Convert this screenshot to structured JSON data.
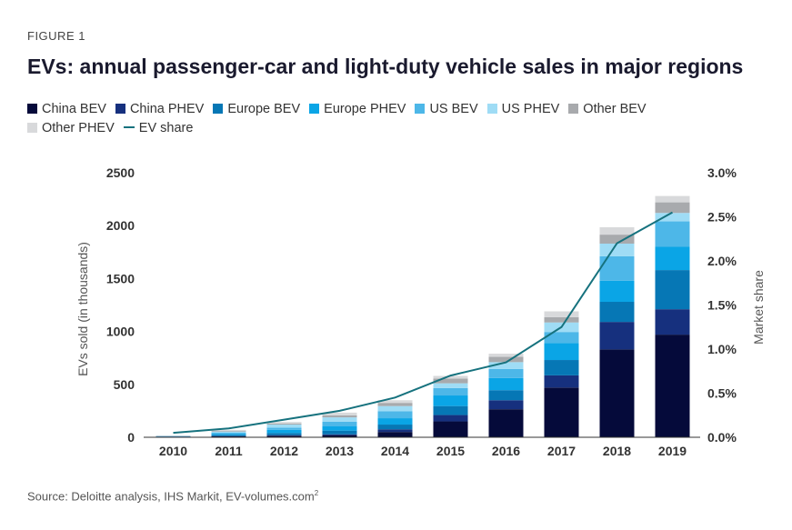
{
  "figure_label": "FIGURE 1",
  "title": "EVs: annual passenger-car and light-duty vehicle sales in major regions",
  "source": "Source: Deloitte analysis, IHS Markit, EV-volumes.com",
  "source_sup": "2",
  "colors": {
    "China BEV": "#050a3a",
    "China PHEV": "#16307e",
    "Europe BEV": "#0677b5",
    "Europe PHEV": "#0aa5e6",
    "US BEV": "#4db7e8",
    "US PHEV": "#9fdcf5",
    "Other BEV": "#a8aaad",
    "Other PHEV": "#d8d9db",
    "EV share": "#16727e"
  },
  "chart_data": {
    "type": "bar",
    "stacked": true,
    "categories": [
      "2010",
      "2011",
      "2012",
      "2013",
      "2014",
      "2015",
      "2016",
      "2017",
      "2018",
      "2019"
    ],
    "series": [
      {
        "name": "China BEV",
        "values": [
          5,
          10,
          15,
          20,
          50,
          150,
          265,
          470,
          830,
          970
        ]
      },
      {
        "name": "China PHEV",
        "values": [
          1,
          2,
          5,
          8,
          25,
          60,
          85,
          115,
          260,
          240
        ]
      },
      {
        "name": "Europe BEV",
        "values": [
          2,
          10,
          20,
          35,
          45,
          85,
          95,
          145,
          190,
          370
        ]
      },
      {
        "name": "Europe PHEV",
        "values": [
          1,
          10,
          30,
          40,
          60,
          100,
          115,
          160,
          200,
          220
        ]
      },
      {
        "name": "US BEV",
        "values": [
          2,
          12,
          20,
          45,
          65,
          70,
          85,
          105,
          230,
          240
        ]
      },
      {
        "name": "US PHEV",
        "values": [
          1,
          10,
          30,
          40,
          50,
          45,
          65,
          90,
          120,
          80
        ]
      },
      {
        "name": "Other BEV",
        "values": [
          3,
          8,
          10,
          20,
          30,
          45,
          50,
          50,
          85,
          100
        ]
      },
      {
        "name": "Other PHEV",
        "values": [
          2,
          8,
          15,
          25,
          25,
          25,
          30,
          55,
          70,
          60
        ]
      }
    ],
    "line_series": {
      "name": "EV share",
      "axis": "right",
      "values": [
        0.05,
        0.1,
        0.2,
        0.3,
        0.45,
        0.7,
        0.85,
        1.25,
        2.2,
        2.55
      ]
    },
    "ylabel": "EVs sold (in thousands)",
    "y2label": "Market share",
    "ylim": [
      0,
      2500
    ],
    "y2lim": [
      0,
      3.0
    ],
    "yticks": [
      "0",
      "500",
      "1000",
      "1500",
      "2000",
      "2500"
    ],
    "y2ticks": [
      "0.0%",
      "0.5%",
      "1.0%",
      "1.5%",
      "2.0%",
      "2.5%",
      "3.0%"
    ],
    "legend_position": "top",
    "grid": false
  }
}
